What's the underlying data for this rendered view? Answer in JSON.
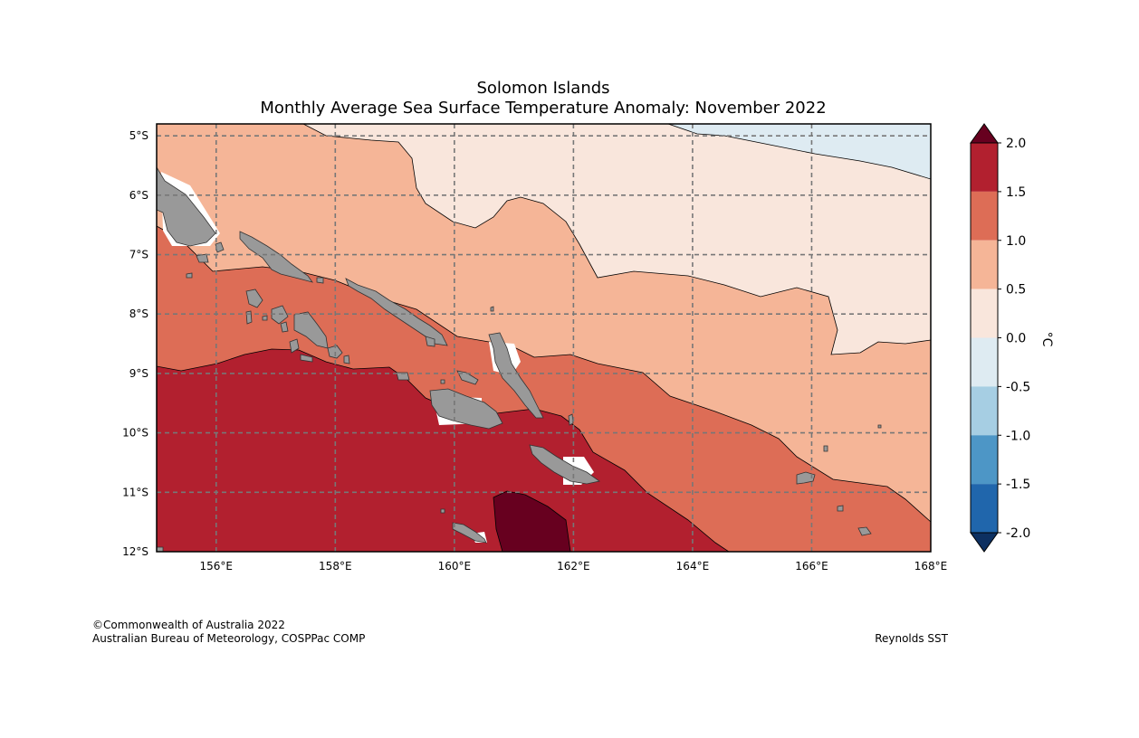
{
  "title": "Solomon Islands",
  "subtitle": "Monthly Average Sea Surface Temperature Anomaly: November 2022",
  "lat_labels": [
    "5°S",
    "6°S",
    "7°S",
    "8°S",
    "9°S",
    "10°S",
    "11°S",
    "12°S"
  ],
  "lon_labels": [
    "156°E",
    "158°E",
    "160°E",
    "162°E",
    "164°E",
    "166°E",
    "168°E"
  ],
  "colorbar": {
    "unit": "°C",
    "ticks": [
      "2.0",
      "1.5",
      "1.0",
      "0.5",
      "0.0",
      "-0.5",
      "-1.0",
      "-1.5",
      "-2.0"
    ],
    "colors": [
      "#67001f",
      "#b2202f",
      "#dd6d56",
      "#f5b597",
      "#f9e6dc",
      "#deebf2",
      "#a6cee3",
      "#4d96c6",
      "#2066ac",
      "#0d3061"
    ]
  },
  "map": {
    "extent": {
      "lon": [
        155,
        168
      ],
      "lat": [
        -12.0,
        -4.8
      ]
    },
    "anomaly_bands": [
      "-0.5 to 0.0",
      "0.0 to 0.5",
      "0.5 to 1.0",
      "1.0 to 1.5",
      "1.5 to 2.0",
      ">2.0"
    ],
    "land_color": "#999999",
    "region": "Solomon Islands"
  },
  "footer": {
    "copyright": "©Commonwealth of Australia 2022",
    "agency": "Australian Bureau of Meteorology, COSPPac COMP",
    "source": "Reynolds SST"
  }
}
